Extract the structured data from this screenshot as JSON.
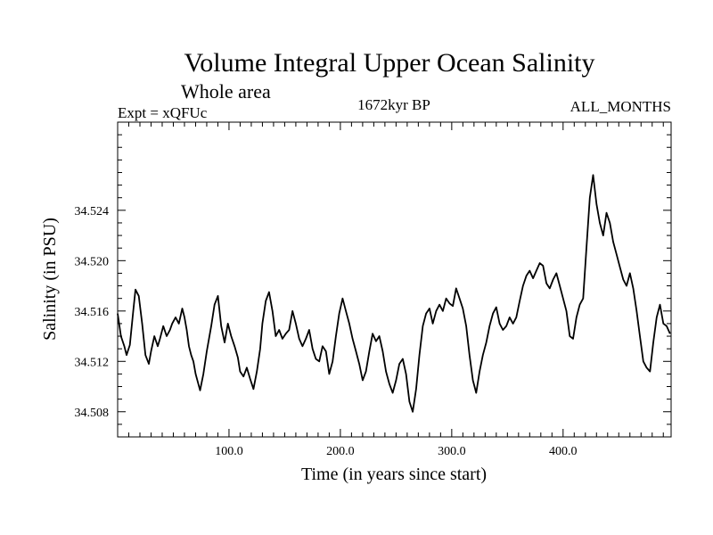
{
  "chart_data": {
    "type": "line",
    "title": "Volume Integral Upper Ocean Salinity",
    "subtitle": "Whole area",
    "left_label": "Expt = xQFUc",
    "center_label": "1672kyr BP",
    "right_label": "ALL_MONTHS",
    "xlabel": "Time (in years since start)",
    "ylabel": "Salinity (in PSU)",
    "xlim": [
      0,
      497
    ],
    "ylim": [
      34.506,
      34.531
    ],
    "xticks": [
      100,
      200,
      300,
      400
    ],
    "xtick_labels": [
      "100.0",
      "200.0",
      "300.0",
      "400.0"
    ],
    "yticks": [
      34.508,
      34.512,
      34.516,
      34.52,
      34.524
    ],
    "ytick_labels": [
      "34.508",
      "34.512",
      "34.516",
      "34.520",
      "34.524"
    ],
    "line_color": "#000000",
    "series": [
      {
        "name": "salinity",
        "x": [
          0,
          3,
          6,
          8,
          11,
          14,
          16,
          19,
          22,
          25,
          28,
          30,
          33,
          36,
          38,
          41,
          44,
          47,
          49,
          52,
          55,
          58,
          60,
          62,
          64,
          66,
          68,
          70,
          74,
          77,
          80,
          84,
          87,
          90,
          93,
          96,
          99,
          102,
          105,
          108,
          110,
          113,
          116,
          119,
          122,
          125,
          128,
          130,
          133,
          136,
          139,
          142,
          145,
          148,
          151,
          154,
          157,
          160,
          163,
          166,
          169,
          172,
          175,
          178,
          181,
          184,
          187,
          190,
          193,
          196,
          199,
          202,
          205,
          208,
          211,
          214,
          217,
          220,
          223,
          226,
          229,
          232,
          235,
          238,
          241,
          244,
          247,
          250,
          253,
          256,
          259,
          262,
          265,
          268,
          271,
          274,
          277,
          280,
          283,
          286,
          289,
          292,
          295,
          298,
          301,
          304,
          307,
          310,
          313,
          316,
          319,
          322,
          325,
          328,
          331,
          334,
          337,
          340,
          343,
          346,
          349,
          352,
          355,
          358,
          361,
          364,
          367,
          370,
          373,
          376,
          379,
          382,
          385,
          388,
          391,
          394,
          397,
          400,
          403,
          406,
          409,
          412,
          415,
          418,
          421,
          424,
          427,
          430,
          433,
          436,
          439,
          442,
          445,
          448,
          451,
          454,
          457,
          460,
          463,
          466,
          469,
          472,
          475,
          478,
          481,
          484,
          487,
          490,
          493,
          496
        ],
        "values": [
          34.5158,
          34.514,
          34.5132,
          34.5125,
          34.5133,
          34.516,
          34.5177,
          34.5172,
          34.515,
          34.5125,
          34.5118,
          34.5128,
          34.514,
          34.5132,
          34.5138,
          34.5148,
          34.514,
          34.5145,
          34.515,
          34.5155,
          34.515,
          34.5162,
          34.5155,
          34.5145,
          34.5132,
          34.5125,
          34.512,
          34.511,
          34.5097,
          34.511,
          34.5128,
          34.5148,
          34.5165,
          34.5172,
          34.5148,
          34.5135,
          34.515,
          34.514,
          34.5132,
          34.5123,
          34.5112,
          34.5108,
          34.5115,
          34.5106,
          34.5098,
          34.5112,
          34.513,
          34.515,
          34.5168,
          34.5175,
          34.516,
          34.514,
          34.5145,
          34.5138,
          34.5142,
          34.5145,
          34.516,
          34.515,
          34.5138,
          34.5132,
          34.5138,
          34.5145,
          34.513,
          34.5122,
          34.512,
          34.5132,
          34.5128,
          34.511,
          34.512,
          34.514,
          34.5158,
          34.517,
          34.516,
          34.515,
          34.5138,
          34.5128,
          34.5118,
          34.5105,
          34.5112,
          34.5128,
          34.5142,
          34.5136,
          34.514,
          34.5128,
          34.5112,
          34.5102,
          34.5095,
          34.5105,
          34.5118,
          34.5122,
          34.511,
          34.5088,
          34.508,
          34.5098,
          34.5125,
          34.5148,
          34.5158,
          34.5162,
          34.515,
          34.516,
          34.5165,
          34.516,
          34.517,
          34.5166,
          34.5164,
          34.5178,
          34.517,
          34.5162,
          34.5148,
          34.5125,
          34.5105,
          34.5095,
          34.5112,
          34.5125,
          34.5135,
          34.5148,
          34.5158,
          34.5163,
          34.515,
          34.5145,
          34.5148,
          34.5155,
          34.515,
          34.5155,
          34.5168,
          34.518,
          34.5188,
          34.5192,
          34.5186,
          34.5192,
          34.5198,
          34.5196,
          34.5182,
          34.5178,
          34.5185,
          34.519,
          34.518,
          34.517,
          34.516,
          34.514,
          34.5138,
          34.5155,
          34.5165,
          34.517,
          34.521,
          34.525,
          34.5268,
          34.5245,
          34.523,
          34.522,
          34.5238,
          34.523,
          34.5215,
          34.5205,
          34.5195,
          34.5185,
          34.518,
          34.519,
          34.5178,
          34.516,
          34.514,
          34.512,
          34.5115,
          34.5112,
          34.5135,
          34.5155,
          34.5165,
          34.515,
          34.5148,
          34.5142
        ]
      }
    ]
  }
}
